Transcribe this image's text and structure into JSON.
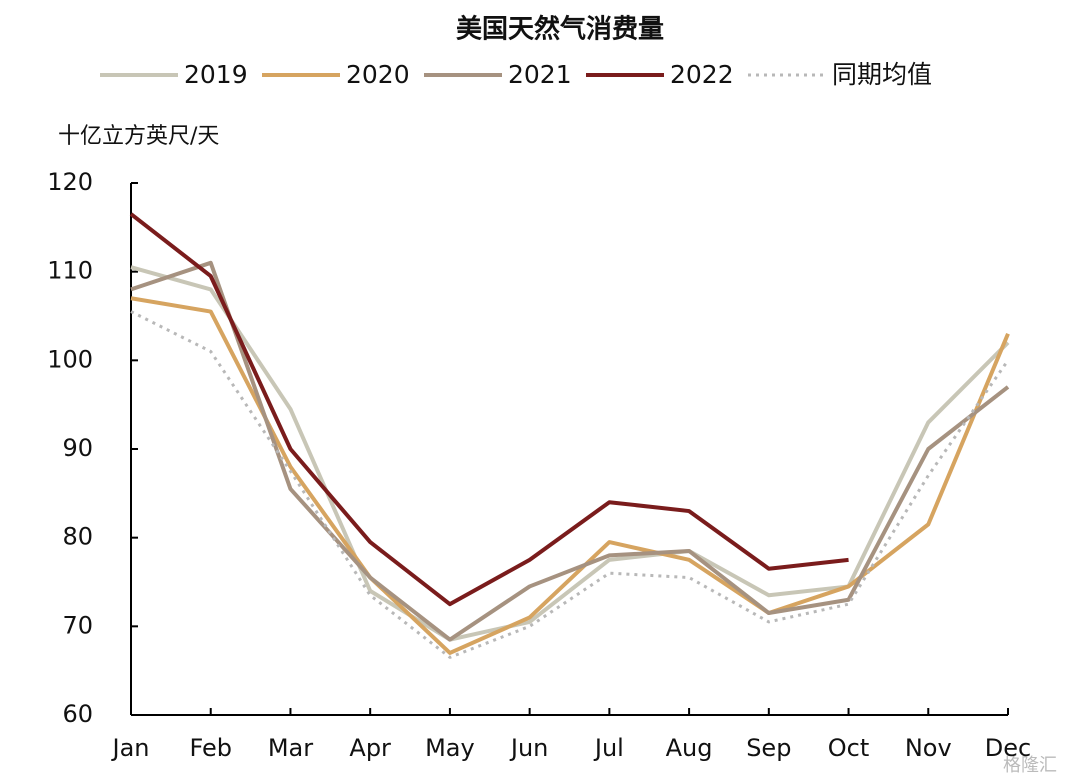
{
  "chart_data": {
    "type": "line",
    "title": "美国天然气消费量",
    "y_label": "十亿立方英尺/天",
    "categories": [
      "Jan",
      "Feb",
      "Mar",
      "Apr",
      "May",
      "Jun",
      "Jul",
      "Aug",
      "Sep",
      "Oct",
      "Nov",
      "Dec"
    ],
    "series": [
      {
        "name": "2019",
        "color": "#c8c6b6",
        "style": "solid",
        "values": [
          110.5,
          108,
          94.5,
          74,
          68.5,
          70.5,
          77.5,
          78.5,
          73.5,
          74.5,
          93,
          102
        ]
      },
      {
        "name": "2020",
        "color": "#d6a460",
        "style": "solid",
        "values": [
          107,
          105.5,
          88,
          75.5,
          67,
          71,
          79.5,
          77.5,
          71.5,
          74.5,
          81.5,
          103
        ]
      },
      {
        "name": "2021",
        "color": "#a69280",
        "style": "solid",
        "values": [
          108,
          111,
          85.5,
          75.5,
          68.5,
          74.5,
          78,
          78.5,
          71.5,
          73,
          90,
          97
        ]
      },
      {
        "name": "2022",
        "color": "#7a1c1c",
        "style": "solid",
        "values": [
          116.5,
          109.5,
          90,
          79.5,
          72.5,
          77.5,
          84,
          83,
          76.5,
          77.5,
          null,
          null
        ]
      },
      {
        "name": "同期均值",
        "color": "#b8b8b8",
        "style": "dotted",
        "values": [
          105.5,
          101,
          87.5,
          73.5,
          66.5,
          70,
          76,
          75.5,
          70.5,
          72.5,
          87,
          100
        ]
      }
    ],
    "ylim": [
      60,
      120
    ],
    "yticks": [
      60,
      70,
      80,
      90,
      100,
      110,
      120
    ],
    "watermark": "格隆汇"
  }
}
